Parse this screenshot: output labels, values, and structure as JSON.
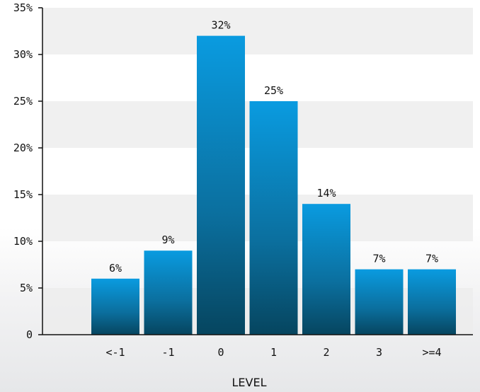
{
  "chart_data": {
    "type": "bar",
    "title": "",
    "xlabel": "LEVEL",
    "ylabel": "",
    "categories": [
      "<-1",
      "-1",
      "0",
      "1",
      "2",
      "3",
      ">=4"
    ],
    "values": [
      6,
      9,
      32,
      25,
      14,
      7,
      7
    ],
    "data_labels": [
      "6%",
      "9%",
      "32%",
      "25%",
      "14%",
      "7%",
      "7%"
    ],
    "ylim": [
      0,
      35
    ],
    "y_ticks": [
      0,
      5,
      10,
      15,
      20,
      25,
      30,
      35
    ],
    "y_tick_labels": [
      "0",
      "5%",
      "10%",
      "15%",
      "20%",
      "25%",
      "30%",
      "35%"
    ],
    "grid": "alternating horizontal bands",
    "legend": "none"
  },
  "colors": {
    "bar_top": "#0a9be0",
    "bar_bottom": "#06455f",
    "band_shade": "#ececec",
    "axis": "#111111",
    "text": "#111111"
  }
}
